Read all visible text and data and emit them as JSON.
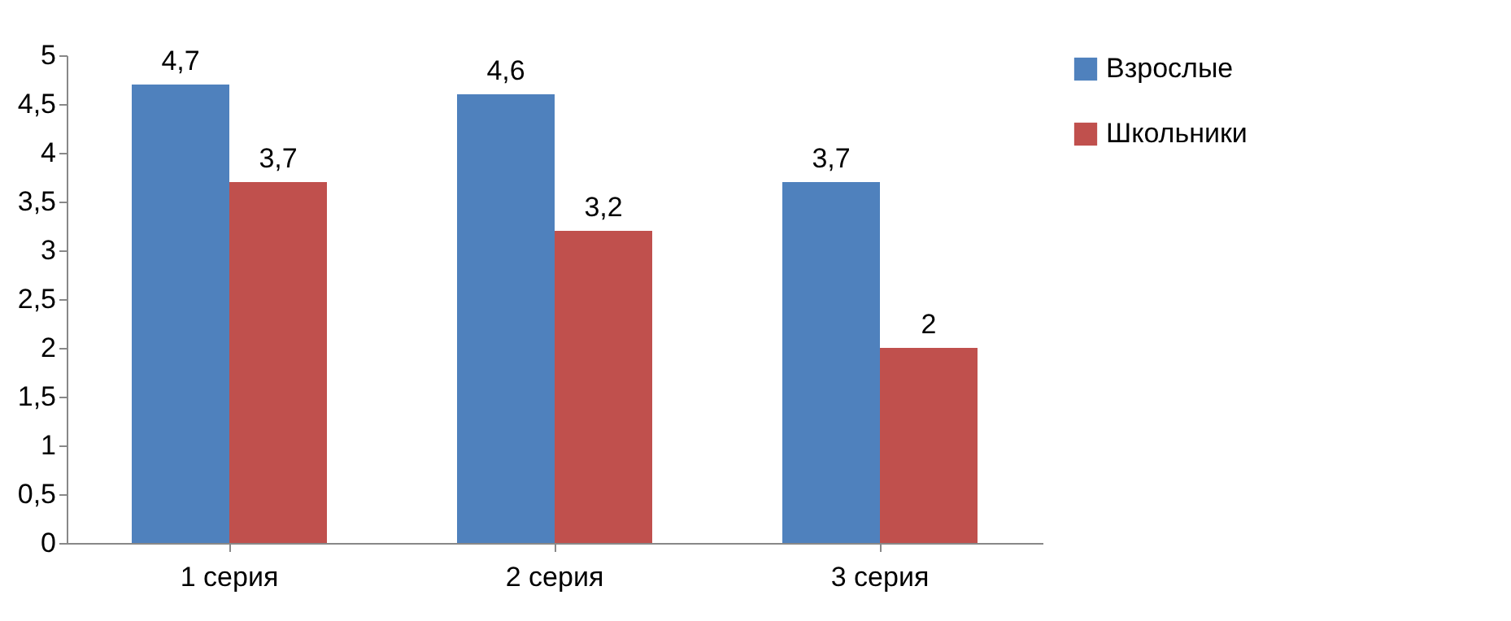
{
  "chart_data": {
    "type": "bar",
    "categories": [
      "1 серия",
      "2 серия",
      "3 серия"
    ],
    "series": [
      {
        "name": "Взрослые",
        "color": "#4f81bd",
        "values": [
          4.7,
          4.6,
          3.7
        ],
        "value_labels": [
          "4,7",
          "4,6",
          "3,7"
        ]
      },
      {
        "name": "Школьники",
        "color": "#c0504d",
        "values": [
          3.7,
          3.2,
          2
        ],
        "value_labels": [
          "3,7",
          "3,2",
          "2"
        ]
      }
    ],
    "ylim": [
      0,
      5
    ],
    "yticks": [
      0,
      {
        "value": 0.5,
        "label": "0,5"
      },
      1,
      {
        "value": 1.5,
        "label": "1,5"
      },
      2,
      {
        "value": 2.5,
        "label": "2,5"
      },
      3,
      {
        "value": 3.5,
        "label": "3,5"
      },
      4,
      {
        "value": 4.5,
        "label": "4,5"
      },
      5
    ],
    "grid": false,
    "legend": "right"
  }
}
